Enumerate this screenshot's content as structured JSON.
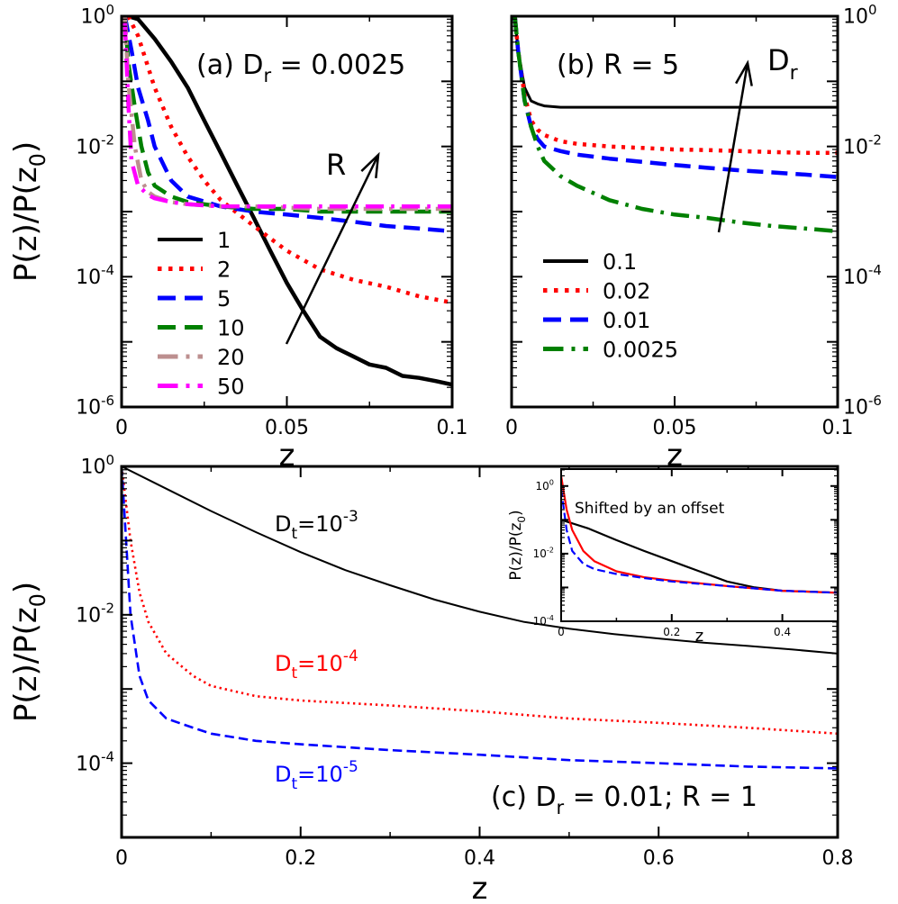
{
  "chart_data": [
    {
      "id": "a",
      "type": "line",
      "panel_label": "(a) D",
      "panel_label_sub": "r",
      "panel_label_tail": " = 0.0025",
      "xlabel": "z",
      "ylabel": "P(z)/P(z",
      "ylabel_sub": "0",
      "ylabel_tail": ")",
      "xlim": [
        0,
        0.1
      ],
      "ylim_exp": [
        -6,
        0
      ],
      "log_y": true,
      "xticks": [
        0,
        0.05,
        0.1
      ],
      "xtick_labels": [
        "0",
        "0.05",
        "0.1"
      ],
      "ytick_exps": [
        -6,
        -4,
        -2,
        0
      ],
      "arrow_label": "R",
      "legend_position": "bottom-left",
      "series": [
        {
          "name": "1",
          "color": "#000000",
          "style": "solid",
          "x": [
            0.002,
            0.005,
            0.01,
            0.015,
            0.02,
            0.025,
            0.03,
            0.035,
            0.04,
            0.045,
            0.05,
            0.055,
            0.06,
            0.065,
            0.07,
            0.075,
            0.08,
            0.085,
            0.09,
            0.095,
            0.1
          ],
          "y": [
            1.0,
            0.9,
            0.45,
            0.2,
            0.08,
            0.025,
            0.008,
            0.0025,
            0.0008,
            0.00025,
            8e-05,
            3e-05,
            1.2e-05,
            8e-06,
            6e-06,
            4.5e-06,
            4e-06,
            3e-06,
            2.8e-06,
            2.5e-06,
            2.2e-06
          ]
        },
        {
          "name": "2",
          "color": "#ff0000",
          "style": "dotted",
          "x": [
            0.002,
            0.005,
            0.01,
            0.015,
            0.02,
            0.025,
            0.03,
            0.04,
            0.05,
            0.06,
            0.07,
            0.08,
            0.09,
            0.1
          ],
          "y": [
            1.0,
            0.5,
            0.08,
            0.02,
            0.007,
            0.003,
            0.0015,
            0.0006,
            0.00025,
            0.00013,
            9e-05,
            7e-05,
            5e-05,
            4e-05
          ]
        },
        {
          "name": "5",
          "color": "#0000ff",
          "style": "dashed",
          "x": [
            0.001,
            0.003,
            0.005,
            0.008,
            0.01,
            0.015,
            0.02,
            0.03,
            0.04,
            0.05,
            0.06,
            0.07,
            0.08,
            0.09,
            0.1
          ],
          "y": [
            1.0,
            0.3,
            0.08,
            0.025,
            0.01,
            0.003,
            0.0017,
            0.0012,
            0.001,
            0.0009,
            0.0008,
            0.0007,
            0.0006,
            0.00055,
            0.0005
          ]
        },
        {
          "name": "10",
          "color": "#008000",
          "style": "dashed",
          "x": [
            0.001,
            0.002,
            0.004,
            0.006,
            0.008,
            0.01,
            0.015,
            0.02,
            0.03,
            0.04,
            0.05,
            0.06,
            0.07,
            0.08,
            0.09,
            0.1
          ],
          "y": [
            1.0,
            0.2,
            0.04,
            0.01,
            0.004,
            0.0025,
            0.0017,
            0.0014,
            0.0012,
            0.0011,
            0.0011,
            0.001,
            0.001,
            0.001,
            0.001,
            0.001
          ]
        },
        {
          "name": "20",
          "color": "#bc8f8f",
          "style": "dashdot",
          "x": [
            0.001,
            0.002,
            0.004,
            0.006,
            0.008,
            0.01,
            0.015,
            0.02,
            0.03,
            0.04,
            0.06,
            0.08,
            0.1
          ],
          "y": [
            1.0,
            0.1,
            0.01,
            0.003,
            0.002,
            0.0017,
            0.0014,
            0.0013,
            0.0012,
            0.0012,
            0.0011,
            0.0011,
            0.0011
          ]
        },
        {
          "name": "50",
          "color": "#ff00ff",
          "style": "dashdot",
          "x": [
            0.001,
            0.002,
            0.003,
            0.005,
            0.008,
            0.01,
            0.015,
            0.02,
            0.03,
            0.04,
            0.05,
            0.06,
            0.07,
            0.08,
            0.09,
            0.1
          ],
          "y": [
            0.8,
            0.05,
            0.006,
            0.0025,
            0.0018,
            0.0016,
            0.0014,
            0.0013,
            0.0012,
            0.0012,
            0.0012,
            0.0012,
            0.0012,
            0.0012,
            0.0012,
            0.0012
          ]
        }
      ]
    },
    {
      "id": "b",
      "type": "line",
      "panel_label": "(b) R = 5",
      "xlabel": "z",
      "xlim": [
        0,
        0.1
      ],
      "ylim_exp": [
        -6,
        0
      ],
      "log_y": true,
      "xticks": [
        0,
        0.05,
        0.1
      ],
      "xtick_labels": [
        "0",
        "0.05",
        "0.1"
      ],
      "ytick_exps": [
        -6,
        -4,
        -2,
        0
      ],
      "ytick_side": "right",
      "arrow_label": "D",
      "arrow_label_sub": "r",
      "legend_position": "bottom-left",
      "series": [
        {
          "name": "0.1",
          "color": "#000000",
          "style": "solid",
          "x": [
            0.001,
            0.002,
            0.004,
            0.006,
            0.008,
            0.01,
            0.015,
            0.02,
            0.03,
            0.04,
            0.05,
            0.06,
            0.07,
            0.08,
            0.09,
            0.1
          ],
          "y": [
            1.0,
            0.3,
            0.08,
            0.05,
            0.045,
            0.042,
            0.04,
            0.04,
            0.04,
            0.04,
            0.04,
            0.04,
            0.04,
            0.04,
            0.04,
            0.04
          ]
        },
        {
          "name": "0.02",
          "color": "#ff0000",
          "style": "dotted",
          "x": [
            0.001,
            0.002,
            0.004,
            0.006,
            0.008,
            0.01,
            0.015,
            0.02,
            0.03,
            0.04,
            0.05,
            0.06,
            0.07,
            0.08,
            0.09,
            0.1
          ],
          "y": [
            1.0,
            0.3,
            0.06,
            0.025,
            0.018,
            0.015,
            0.012,
            0.011,
            0.01,
            0.0095,
            0.009,
            0.0088,
            0.0085,
            0.0082,
            0.008,
            0.008
          ]
        },
        {
          "name": "0.01",
          "color": "#0000ff",
          "style": "dashed",
          "x": [
            0.001,
            0.002,
            0.004,
            0.006,
            0.008,
            0.01,
            0.015,
            0.02,
            0.03,
            0.04,
            0.05,
            0.06,
            0.07,
            0.08,
            0.09,
            0.1
          ],
          "y": [
            1.0,
            0.3,
            0.05,
            0.02,
            0.013,
            0.01,
            0.0085,
            0.0075,
            0.0065,
            0.0058,
            0.0052,
            0.0047,
            0.0043,
            0.004,
            0.0037,
            0.0034
          ]
        },
        {
          "name": "0.0025",
          "color": "#008000",
          "style": "dashdot",
          "x": [
            0.001,
            0.002,
            0.004,
            0.006,
            0.008,
            0.01,
            0.015,
            0.02,
            0.03,
            0.04,
            0.05,
            0.06,
            0.07,
            0.08,
            0.09,
            0.1
          ],
          "y": [
            1.0,
            0.3,
            0.05,
            0.02,
            0.01,
            0.006,
            0.0035,
            0.0025,
            0.0015,
            0.0011,
            0.0009,
            0.0008,
            0.00068,
            0.0006,
            0.00055,
            0.0005
          ]
        }
      ]
    },
    {
      "id": "c",
      "type": "line",
      "panel_label": "(c) D",
      "panel_label_sub": "r",
      "panel_label_tail": " = 0.01; R = 1",
      "xlabel": "z",
      "ylabel": "P(z)/P(z",
      "ylabel_sub": "0",
      "ylabel_tail": ")",
      "xlim": [
        0,
        0.8
      ],
      "ylim_exp": [
        -5,
        0
      ],
      "log_y": true,
      "xticks": [
        0,
        0.2,
        0.4,
        0.6,
        0.8
      ],
      "xtick_labels": [
        "0",
        "0.2",
        "0.4",
        "0.6",
        "0.8"
      ],
      "ytick_exps": [
        -4,
        -2,
        0
      ],
      "series": [
        {
          "name": "D_t=10^-3",
          "label_main": "D",
          "label_sub": "t",
          "label_eq": "=10",
          "label_exp": "-3",
          "color": "#000000",
          "style": "solid",
          "x": [
            0.0,
            0.05,
            0.1,
            0.15,
            0.2,
            0.25,
            0.3,
            0.35,
            0.4,
            0.45,
            0.5,
            0.55,
            0.6,
            0.65,
            0.7,
            0.75,
            0.8
          ],
          "y": [
            1.0,
            0.5,
            0.25,
            0.13,
            0.07,
            0.04,
            0.025,
            0.016,
            0.011,
            0.008,
            0.0065,
            0.0055,
            0.0048,
            0.0042,
            0.0038,
            0.0034,
            0.003
          ]
        },
        {
          "name": "D_t=10^-4",
          "label_main": "D",
          "label_sub": "t",
          "label_eq": "=10",
          "label_exp": "-4",
          "color": "#ff0000",
          "style": "dotted",
          "x": [
            0.0,
            0.01,
            0.02,
            0.03,
            0.05,
            0.08,
            0.1,
            0.15,
            0.2,
            0.3,
            0.4,
            0.5,
            0.6,
            0.7,
            0.8
          ],
          "y": [
            1.0,
            0.1,
            0.02,
            0.008,
            0.003,
            0.0015,
            0.0011,
            0.0008,
            0.0007,
            0.0006,
            0.0005,
            0.0004,
            0.00035,
            0.0003,
            0.00025
          ]
        },
        {
          "name": "D_t=10^-5",
          "label_main": "D",
          "label_sub": "t",
          "label_eq": "=10",
          "label_exp": "-5",
          "color": "#0000ff",
          "style": "dashed",
          "x": [
            0.0,
            0.005,
            0.01,
            0.02,
            0.03,
            0.05,
            0.08,
            0.1,
            0.15,
            0.2,
            0.3,
            0.4,
            0.5,
            0.6,
            0.7,
            0.8
          ],
          "y": [
            1.0,
            0.1,
            0.01,
            0.0015,
            0.0007,
            0.0004,
            0.0003,
            0.00025,
            0.0002,
            0.00018,
            0.00015,
            0.00013,
            0.00011,
            0.0001,
            9e-05,
            8.5e-05
          ]
        }
      ]
    },
    {
      "id": "inset",
      "type": "line",
      "annotation": "Shifted by an offset",
      "xlabel": "z",
      "ylabel": "P(z)/P(z",
      "ylabel_sub": "0",
      "ylabel_tail": ")",
      "xlim": [
        0,
        0.5
      ],
      "ylim_exp": [
        -4,
        0.5
      ],
      "log_y": true,
      "xticks": [
        0,
        0.2,
        0.4
      ],
      "xtick_labels": [
        "0",
        "0.2",
        "0.4"
      ],
      "ytick_exps": [
        -4,
        -2,
        0
      ],
      "series": [
        {
          "name": "D_t=10^-3",
          "color": "#000000",
          "style": "solid",
          "x": [
            0.0,
            0.05,
            0.1,
            0.15,
            0.2,
            0.25,
            0.3,
            0.35,
            0.4,
            0.45,
            0.5
          ],
          "y": [
            0.1,
            0.055,
            0.025,
            0.012,
            0.006,
            0.003,
            0.0015,
            0.001,
            0.0008,
            0.00075,
            0.0007
          ]
        },
        {
          "name": "D_t=10^-4",
          "color": "#ff0000",
          "style": "solid",
          "x": [
            0.0,
            0.01,
            0.02,
            0.04,
            0.06,
            0.1,
            0.15,
            0.2,
            0.3,
            0.4,
            0.5
          ],
          "y": [
            2.0,
            0.2,
            0.05,
            0.012,
            0.006,
            0.003,
            0.002,
            0.0016,
            0.0011,
            0.0008,
            0.0007
          ]
        },
        {
          "name": "D_t=10^-5",
          "color": "#0000ff",
          "style": "dashed",
          "x": [
            0.0,
            0.01,
            0.02,
            0.04,
            0.06,
            0.1,
            0.15,
            0.2,
            0.3,
            0.4,
            0.5
          ],
          "y": [
            0.8,
            0.05,
            0.012,
            0.005,
            0.0035,
            0.0025,
            0.0019,
            0.0015,
            0.0011,
            0.0008,
            0.0007
          ]
        }
      ]
    }
  ]
}
